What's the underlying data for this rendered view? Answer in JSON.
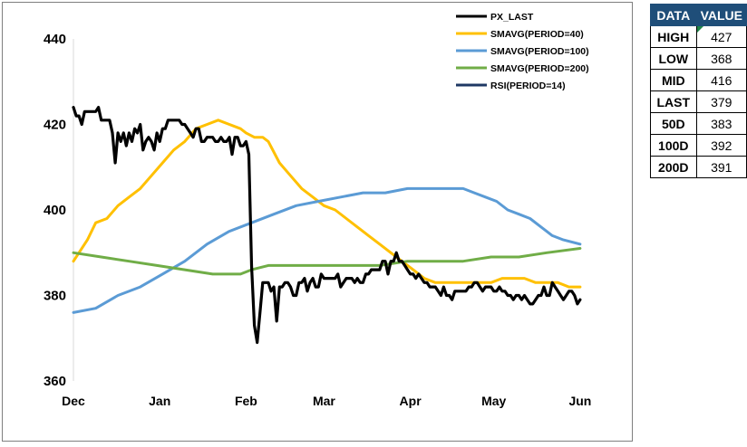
{
  "chart_data": {
    "type": "line",
    "ylim": [
      360,
      440
    ],
    "yticks": [
      "440",
      "420",
      "400",
      "380",
      "360"
    ],
    "ytick_values": [
      440,
      420,
      400,
      380,
      360
    ],
    "xlim": [
      0,
      183
    ],
    "xticks": [
      "Dec",
      "Jan",
      "Feb",
      "Mar",
      "Apr",
      "May",
      "Jun"
    ],
    "xtick_positions": [
      0,
      31,
      62,
      90,
      121,
      151,
      182
    ],
    "grid": false,
    "legend_position": "top-right",
    "series": [
      {
        "name": "PX_LAST",
        "color": "#000000",
        "x": [
          0,
          1,
          2,
          3,
          4,
          5,
          6,
          7,
          8,
          9,
          10,
          11,
          12,
          13,
          14,
          15,
          16,
          17,
          18,
          19,
          20,
          21,
          22,
          23,
          24,
          25,
          26,
          27,
          28,
          29,
          30,
          31,
          32,
          33,
          34,
          35,
          36,
          37,
          38,
          39,
          40,
          41,
          42,
          43,
          44,
          45,
          46,
          47,
          48,
          49,
          50,
          51,
          52,
          53,
          54,
          55,
          56,
          57,
          58,
          59,
          60,
          61,
          62,
          63,
          64,
          65,
          66,
          67,
          68,
          69,
          70,
          71,
          72,
          73,
          74,
          75,
          76,
          77,
          78,
          79,
          80,
          81,
          82,
          83,
          84,
          85,
          86,
          87,
          88,
          89,
          90,
          91,
          92,
          93,
          94,
          95,
          96,
          97,
          98,
          99,
          100,
          101,
          102,
          103,
          104,
          105,
          106,
          107,
          108,
          109,
          110,
          111,
          112,
          113,
          114,
          115,
          116,
          117,
          118,
          119,
          120,
          121,
          122,
          123,
          124,
          125,
          126,
          127,
          128,
          129,
          130,
          131,
          132,
          133,
          134,
          135,
          136,
          137,
          138,
          139,
          140,
          141,
          142,
          143,
          144,
          145,
          146,
          147,
          148,
          149,
          150,
          151,
          152,
          153,
          154,
          155,
          156,
          157,
          158,
          159,
          160,
          161,
          162,
          163,
          164,
          165,
          166,
          167,
          168,
          169,
          170,
          171,
          172,
          173,
          174,
          175,
          176,
          177,
          178,
          179,
          180,
          181,
          182
        ],
        "y": [
          424,
          422,
          422,
          420,
          423,
          423,
          423,
          423,
          423,
          424,
          421,
          421,
          421,
          421,
          418,
          411,
          418,
          416,
          418,
          415,
          418,
          416,
          419,
          418,
          420,
          414,
          416,
          417,
          416,
          414,
          418,
          416,
          419,
          419,
          421,
          421,
          421,
          421,
          421,
          420,
          420,
          419,
          418,
          417,
          419,
          419,
          416,
          416,
          417,
          417,
          417,
          416,
          416,
          417,
          416,
          416,
          417,
          413,
          417,
          417,
          415,
          415,
          416,
          413,
          387,
          373,
          369,
          376,
          383,
          383,
          383,
          381,
          382,
          374,
          382,
          382,
          383,
          383,
          382,
          380,
          380,
          383,
          383,
          384,
          381,
          383,
          384,
          382,
          382,
          385,
          384,
          384,
          384,
          384,
          384,
          385,
          382,
          383,
          384,
          384,
          384,
          383,
          384,
          383,
          383,
          385,
          385,
          386,
          386,
          386,
          386,
          388,
          388,
          385,
          388,
          388,
          390,
          388,
          388,
          387,
          386,
          385,
          385,
          384,
          385,
          384,
          383,
          383,
          382,
          382,
          382,
          381,
          380,
          382,
          380,
          380,
          379,
          381,
          381,
          381,
          381,
          381,
          382,
          382,
          383,
          383,
          382,
          381,
          382,
          382,
          382,
          381,
          381,
          382,
          381,
          381,
          380,
          380,
          379,
          380,
          380,
          379,
          380,
          379,
          378,
          378,
          379,
          380,
          380,
          382,
          380,
          380,
          383,
          382,
          381,
          380,
          379,
          380,
          381,
          381,
          380,
          378,
          379
        ]
      },
      {
        "name": "SMAVG(PERIOD=40)",
        "color": "#ffc000",
        "x": [
          0,
          5,
          8,
          12,
          16,
          20,
          24,
          28,
          32,
          36,
          40,
          44,
          48,
          52,
          56,
          60,
          62,
          65,
          68,
          70,
          74,
          78,
          82,
          86,
          90,
          94,
          98,
          102,
          106,
          110,
          114,
          118,
          122,
          126,
          130,
          134,
          138,
          142,
          146,
          150,
          154,
          158,
          162,
          166,
          170,
          174,
          178,
          182
        ],
        "y": [
          388,
          393,
          397,
          398,
          401,
          403,
          405,
          408,
          411,
          414,
          416,
          419,
          420,
          421,
          420,
          419,
          418,
          417,
          417,
          416,
          411,
          408,
          405,
          403,
          401,
          400,
          398,
          396,
          394,
          392,
          390,
          388,
          386,
          384,
          383,
          383,
          383,
          383,
          383,
          383,
          384,
          384,
          384,
          383,
          383,
          383,
          382,
          382
        ]
      },
      {
        "name": "SMAVG(PERIOD=100)",
        "color": "#5b9bd5",
        "x": [
          0,
          8,
          16,
          24,
          32,
          40,
          48,
          56,
          64,
          72,
          80,
          88,
          96,
          104,
          112,
          120,
          128,
          136,
          140,
          144,
          148,
          152,
          156,
          160,
          164,
          168,
          172,
          176,
          182
        ],
        "y": [
          376,
          377,
          380,
          382,
          385,
          388,
          392,
          395,
          397,
          399,
          401,
          402,
          403,
          404,
          404,
          405,
          405,
          405,
          405,
          404,
          403,
          402,
          400,
          399,
          398,
          396,
          394,
          393,
          392
        ]
      },
      {
        "name": "SMAVG(PERIOD=200)",
        "color": "#70ad47",
        "x": [
          0,
          10,
          20,
          30,
          40,
          50,
          60,
          64,
          70,
          76,
          82,
          90,
          100,
          110,
          120,
          130,
          140,
          150,
          160,
          170,
          182
        ],
        "y": [
          390,
          389,
          388,
          387,
          386,
          385,
          385,
          386,
          387,
          387,
          387,
          387,
          387,
          387,
          388,
          388,
          388,
          389,
          389,
          390,
          391
        ]
      },
      {
        "name": "RSI(PERIOD=14)",
        "color": "#1f3864",
        "x": [],
        "y": []
      }
    ]
  },
  "table": {
    "headers": [
      "DATA",
      "VALUE"
    ],
    "rows": [
      {
        "label": "HIGH",
        "value": "427"
      },
      {
        "label": "LOW",
        "value": "368"
      },
      {
        "label": "MID",
        "value": "416"
      },
      {
        "label": "LAST",
        "value": "379"
      },
      {
        "label": "50D",
        "value": "383"
      },
      {
        "label": "100D",
        "value": "392"
      },
      {
        "label": "200D",
        "value": "391"
      }
    ],
    "header_color": "#1f4e79",
    "marker_color": "#1e8449"
  }
}
